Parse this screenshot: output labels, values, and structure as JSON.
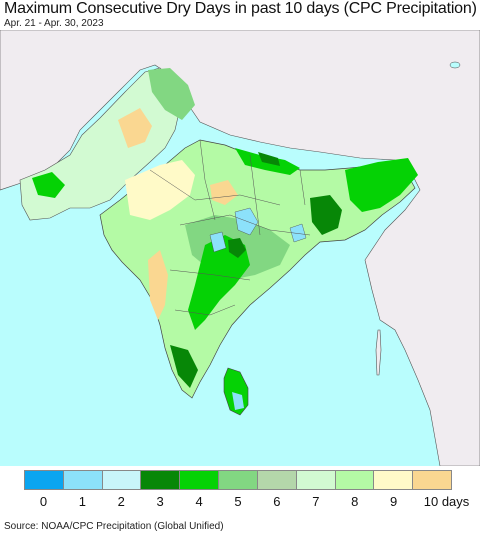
{
  "title": "Maximum Consecutive Dry Days in past 10 days (CPC Precipitation)",
  "subtitle": "Apr. 21 - Apr. 30, 2023",
  "source": "Source: NOAA/CPC Precipitation (Global Unified)",
  "colors": {
    "ocean": "#b9fdfd",
    "outside_land": "#f0ecf0",
    "border": "#333333"
  },
  "legend": {
    "unit_label": "days",
    "bins": [
      {
        "value": 0,
        "label": "0",
        "color": "#0aa5f0"
      },
      {
        "value": 1,
        "label": "1",
        "color": "#8ce1fa"
      },
      {
        "value": 2,
        "label": "2",
        "color": "#c8f5fa"
      },
      {
        "value": 3,
        "label": "3",
        "color": "#078707"
      },
      {
        "value": 4,
        "label": "4",
        "color": "#05d205"
      },
      {
        "value": 5,
        "label": "5",
        "color": "#82d782"
      },
      {
        "value": 6,
        "label": "6",
        "color": "#b4d7aa"
      },
      {
        "value": 7,
        "label": "7",
        "color": "#d2fad2"
      },
      {
        "value": 8,
        "label": "8",
        "color": "#b4faa5"
      },
      {
        "value": 9,
        "label": "9",
        "color": "#fffac8"
      },
      {
        "value": 10,
        "label": "10 days",
        "color": "#fad791"
      }
    ]
  }
}
